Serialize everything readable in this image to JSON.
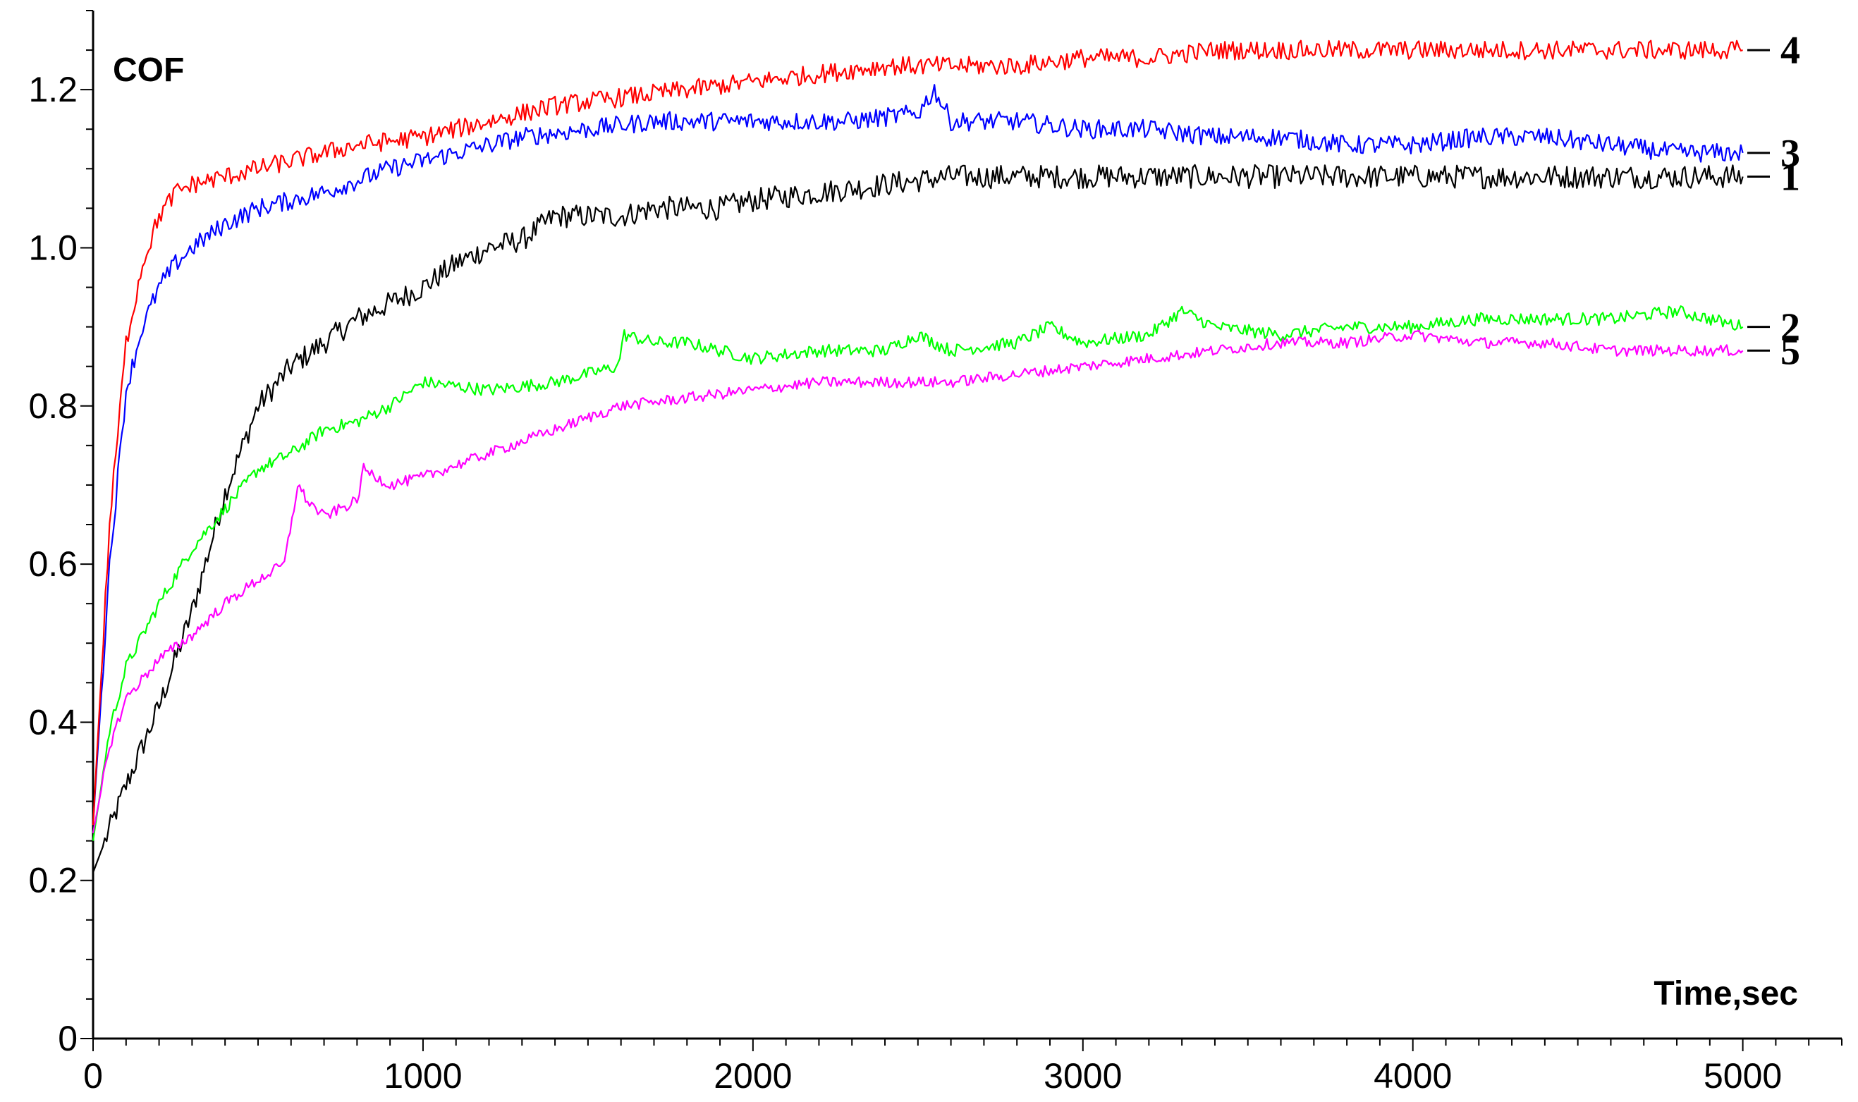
{
  "chart_data": {
    "type": "line",
    "ylabel": "COF",
    "xlabel": "Time,sec",
    "xlim": [
      0,
      5300
    ],
    "ylim": [
      0,
      1.3
    ],
    "x_ticks": [
      "0",
      "1000",
      "2000",
      "3000",
      "4000",
      "5000"
    ],
    "y_ticks": [
      "0",
      "0.2",
      "0.4",
      "0.6",
      "0.8",
      "1.0",
      "1.2"
    ],
    "grid": false,
    "legend": "curve labels at right end of each line",
    "series": [
      {
        "name": "1",
        "color": "#000000",
        "noise": 0.015,
        "x": [
          0,
          100,
          200,
          300,
          400,
          500,
          600,
          700,
          800,
          900,
          1000,
          1100,
          1200,
          1300,
          1400,
          1500,
          1600,
          1700,
          1800,
          1900,
          2000,
          2200,
          2400,
          2600,
          2800,
          3000,
          3200,
          3400,
          3600,
          3800,
          4000,
          4200,
          4400,
          4600,
          4800,
          5000
        ],
        "y": [
          0.21,
          0.32,
          0.42,
          0.54,
          0.69,
          0.8,
          0.85,
          0.88,
          0.91,
          0.93,
          0.95,
          0.98,
          1.0,
          1.01,
          1.04,
          1.04,
          1.04,
          1.05,
          1.05,
          1.05,
          1.06,
          1.07,
          1.08,
          1.09,
          1.09,
          1.09,
          1.09,
          1.09,
          1.09,
          1.09,
          1.09,
          1.09,
          1.09,
          1.09,
          1.09,
          1.09
        ]
      },
      {
        "name": "2",
        "color": "#00ff00",
        "noise": 0.008,
        "x": [
          0,
          50,
          100,
          200,
          300,
          400,
          500,
          600,
          700,
          800,
          900,
          1000,
          1200,
          1400,
          1590,
          1610,
          1700,
          1800,
          2000,
          2200,
          2400,
          2500,
          2600,
          2800,
          2900,
          3000,
          3200,
          3300,
          3400,
          3600,
          3800,
          4000,
          4200,
          4400,
          4600,
          4800,
          5000
        ],
        "y": [
          0.25,
          0.39,
          0.47,
          0.55,
          0.62,
          0.67,
          0.72,
          0.74,
          0.77,
          0.78,
          0.8,
          0.83,
          0.82,
          0.83,
          0.85,
          0.89,
          0.88,
          0.88,
          0.86,
          0.87,
          0.87,
          0.89,
          0.87,
          0.88,
          0.9,
          0.88,
          0.89,
          0.92,
          0.9,
          0.89,
          0.9,
          0.9,
          0.91,
          0.91,
          0.91,
          0.92,
          0.9
        ]
      },
      {
        "name": "3",
        "color": "#0000ff",
        "noise": 0.012,
        "x": [
          0,
          50,
          100,
          150,
          200,
          250,
          300,
          400,
          500,
          700,
          900,
          1100,
          1300,
          1500,
          1700,
          2000,
          2300,
          2500,
          2550,
          2600,
          2800,
          3000,
          3200,
          3400,
          3600,
          3800,
          4000,
          4200,
          4400,
          4600,
          4800,
          5000
        ],
        "y": [
          0.27,
          0.6,
          0.82,
          0.9,
          0.95,
          0.98,
          1.0,
          1.03,
          1.05,
          1.07,
          1.1,
          1.12,
          1.14,
          1.15,
          1.16,
          1.16,
          1.16,
          1.17,
          1.2,
          1.16,
          1.16,
          1.15,
          1.15,
          1.14,
          1.14,
          1.13,
          1.13,
          1.14,
          1.14,
          1.13,
          1.12,
          1.12
        ]
      },
      {
        "name": "4",
        "color": "#ff0000",
        "noise": 0.012,
        "x": [
          0,
          50,
          100,
          150,
          200,
          250,
          300,
          400,
          600,
          800,
          1000,
          1200,
          1400,
          1600,
          1800,
          2000,
          2200,
          2400,
          2600,
          2800,
          3000,
          3200,
          3400,
          3600,
          3800,
          4000,
          4200,
          4400,
          4600,
          4800,
          5000
        ],
        "y": [
          0.27,
          0.65,
          0.88,
          0.98,
          1.04,
          1.07,
          1.08,
          1.09,
          1.11,
          1.13,
          1.14,
          1.16,
          1.18,
          1.19,
          1.2,
          1.21,
          1.22,
          1.23,
          1.23,
          1.23,
          1.24,
          1.24,
          1.25,
          1.25,
          1.25,
          1.25,
          1.25,
          1.25,
          1.25,
          1.25,
          1.25
        ]
      },
      {
        "name": "5",
        "color": "#ff00ff",
        "noise": 0.007,
        "x": [
          0,
          50,
          100,
          200,
          300,
          400,
          500,
          580,
          620,
          650,
          700,
          750,
          800,
          820,
          900,
          1000,
          1200,
          1400,
          1600,
          1800,
          2000,
          2200,
          2400,
          2600,
          2800,
          3000,
          3200,
          3400,
          3600,
          3800,
          4000,
          4200,
          4400,
          4600,
          4800,
          5000
        ],
        "y": [
          0.26,
          0.37,
          0.43,
          0.48,
          0.51,
          0.55,
          0.58,
          0.6,
          0.7,
          0.68,
          0.66,
          0.67,
          0.68,
          0.72,
          0.7,
          0.71,
          0.74,
          0.77,
          0.8,
          0.81,
          0.82,
          0.83,
          0.83,
          0.83,
          0.84,
          0.85,
          0.86,
          0.87,
          0.88,
          0.88,
          0.89,
          0.88,
          0.88,
          0.87,
          0.87,
          0.87
        ]
      }
    ]
  }
}
